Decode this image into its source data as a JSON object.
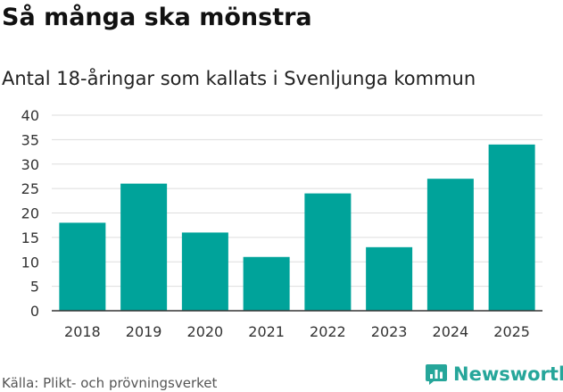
{
  "title": "Så många ska mönstra",
  "subtitle": "Antal 18-åringar som kallats i Svenljunga kommun",
  "source": "Källa: Plikt- och prövningsverket",
  "brand": {
    "name": "Newsworthy",
    "color": "#26a69a",
    "icon": "newsworthy-chart-icon"
  },
  "colors": {
    "bar": "#00a39a",
    "grid": "#dddddd",
    "axis": "#333333"
  },
  "chart_data": {
    "type": "bar",
    "categories": [
      "2018",
      "2019",
      "2020",
      "2021",
      "2022",
      "2023",
      "2024",
      "2025"
    ],
    "values": [
      18,
      26,
      16,
      11,
      24,
      13,
      27,
      34
    ],
    "ylim": [
      0,
      40
    ],
    "yticks": [
      0,
      5,
      10,
      15,
      20,
      25,
      30,
      35,
      40
    ],
    "grid": true,
    "legend": "none"
  }
}
